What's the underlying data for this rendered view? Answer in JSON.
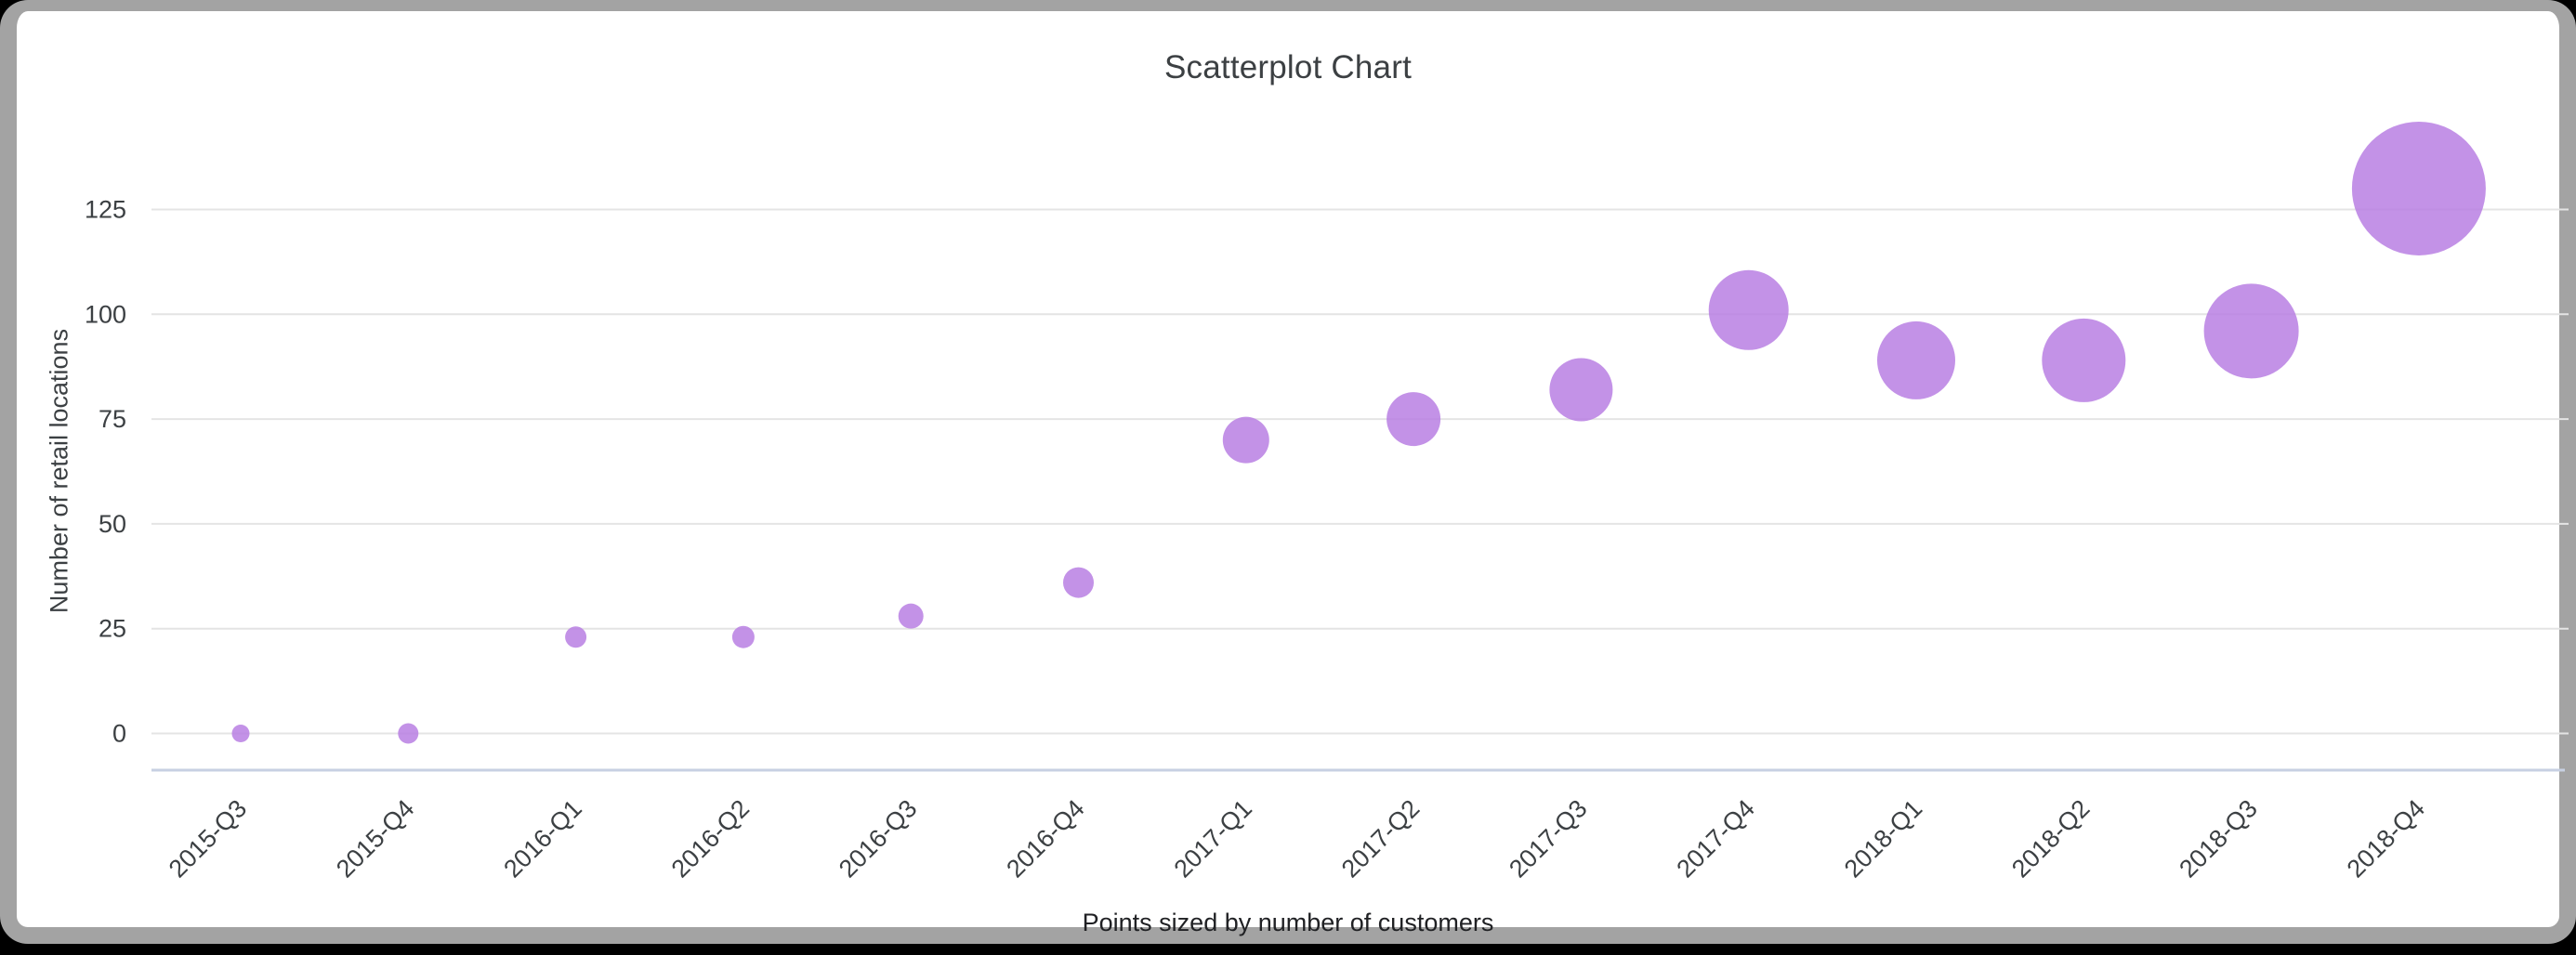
{
  "page": {
    "background": "#000000",
    "card": {
      "background": "#ffffff",
      "border_color": "#a3a3a3"
    }
  },
  "chart_data": {
    "type": "scatter",
    "title": "Scatterplot Chart",
    "ylabel": "Number of retail locations",
    "xlabel": "",
    "size_caption": "Points sized by number of customers",
    "categories": [
      "2015-Q3",
      "2015-Q4",
      "2016-Q1",
      "2016-Q2",
      "2016-Q3",
      "2016-Q4",
      "2017-Q1",
      "2017-Q2",
      "2017-Q3",
      "2017-Q4",
      "2018-Q1",
      "2018-Q2",
      "2018-Q3",
      "2018-Q4"
    ],
    "values": [
      0,
      0,
      23,
      23,
      28,
      36,
      70,
      75,
      82,
      101,
      89,
      89,
      96,
      130
    ],
    "point_radius_px": [
      9.5,
      11,
      11.5,
      12,
      13.5,
      16.5,
      25,
      29,
      34,
      43,
      42,
      45,
      51,
      72
    ],
    "yticks": [
      0,
      25,
      50,
      75,
      100,
      125
    ],
    "ylim": [
      0,
      135
    ],
    "grid": true,
    "legend": "none",
    "point_color": "#b87fe3",
    "point_opacity": 0.85,
    "grid_color": "#e4e4e4",
    "axis_line_color": "#c7d0e2",
    "text_color": "#3c4043"
  }
}
